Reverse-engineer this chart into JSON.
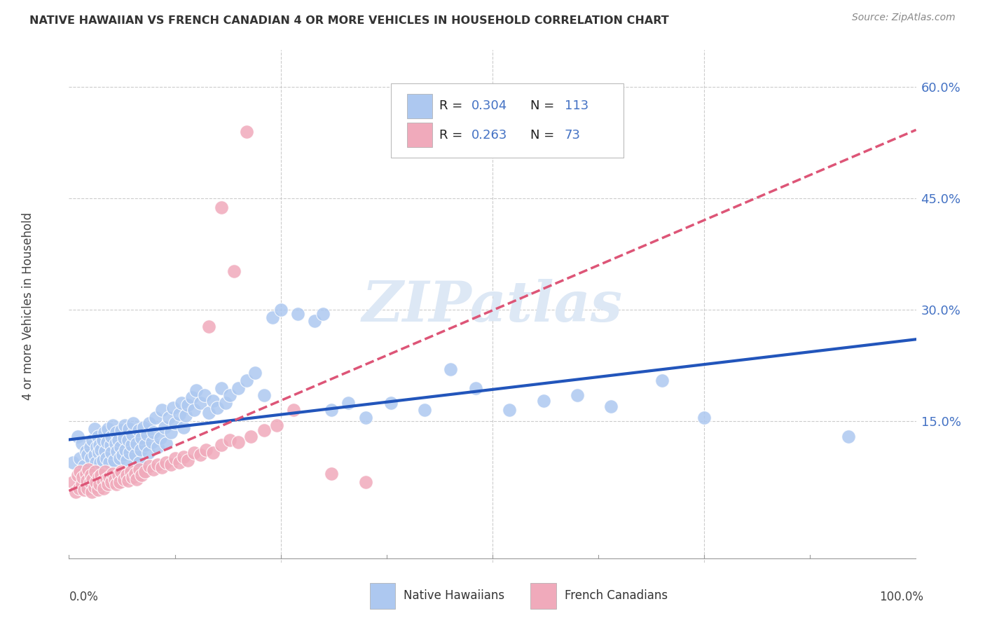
{
  "title": "NATIVE HAWAIIAN VS FRENCH CANADIAN 4 OR MORE VEHICLES IN HOUSEHOLD CORRELATION CHART",
  "source": "Source: ZipAtlas.com",
  "ylabel": "4 or more Vehicles in Household",
  "ytick_labels": [
    "15.0%",
    "30.0%",
    "45.0%",
    "60.0%"
  ],
  "ytick_values": [
    0.15,
    0.3,
    0.45,
    0.6
  ],
  "xmin": 0.0,
  "xmax": 1.0,
  "ymin": -0.04,
  "ymax": 0.65,
  "legend_R1": "0.304",
  "legend_N1": "113",
  "legend_R2": "0.263",
  "legend_N2": "73",
  "color_blue": "#adc8f0",
  "color_pink": "#f0aabb",
  "line_blue": "#2255bb",
  "line_pink": "#dd5577",
  "watermark": "ZIPatlas",
  "watermark_color": "#dde8f5",
  "blue_scatter_x": [
    0.005,
    0.01,
    0.013,
    0.015,
    0.018,
    0.02,
    0.022,
    0.023,
    0.025,
    0.026,
    0.028,
    0.03,
    0.03,
    0.032,
    0.033,
    0.034,
    0.035,
    0.036,
    0.037,
    0.038,
    0.04,
    0.04,
    0.042,
    0.043,
    0.044,
    0.045,
    0.046,
    0.048,
    0.049,
    0.05,
    0.05,
    0.052,
    0.053,
    0.055,
    0.056,
    0.057,
    0.058,
    0.06,
    0.061,
    0.062,
    0.063,
    0.065,
    0.066,
    0.067,
    0.068,
    0.07,
    0.071,
    0.072,
    0.074,
    0.075,
    0.076,
    0.078,
    0.08,
    0.082,
    0.083,
    0.085,
    0.086,
    0.088,
    0.09,
    0.092,
    0.094,
    0.095,
    0.098,
    0.1,
    0.102,
    0.105,
    0.108,
    0.11,
    0.113,
    0.115,
    0.118,
    0.12,
    0.123,
    0.125,
    0.13,
    0.133,
    0.135,
    0.138,
    0.14,
    0.145,
    0.148,
    0.15,
    0.155,
    0.16,
    0.165,
    0.17,
    0.175,
    0.18,
    0.185,
    0.19,
    0.2,
    0.21,
    0.22,
    0.23,
    0.24,
    0.25,
    0.27,
    0.29,
    0.3,
    0.31,
    0.33,
    0.35,
    0.38,
    0.42,
    0.45,
    0.48,
    0.52,
    0.56,
    0.6,
    0.64,
    0.7,
    0.75,
    0.92
  ],
  "blue_scatter_y": [
    0.095,
    0.13,
    0.1,
    0.12,
    0.09,
    0.11,
    0.105,
    0.085,
    0.115,
    0.1,
    0.125,
    0.105,
    0.14,
    0.095,
    0.115,
    0.13,
    0.108,
    0.118,
    0.095,
    0.112,
    0.125,
    0.098,
    0.135,
    0.11,
    0.1,
    0.122,
    0.14,
    0.095,
    0.118,
    0.108,
    0.13,
    0.145,
    0.098,
    0.12,
    0.135,
    0.11,
    0.125,
    0.1,
    0.115,
    0.138,
    0.105,
    0.128,
    0.145,
    0.112,
    0.098,
    0.125,
    0.14,
    0.108,
    0.118,
    0.132,
    0.148,
    0.105,
    0.12,
    0.138,
    0.095,
    0.112,
    0.128,
    0.142,
    0.118,
    0.132,
    0.108,
    0.148,
    0.122,
    0.135,
    0.155,
    0.115,
    0.128,
    0.165,
    0.142,
    0.12,
    0.155,
    0.135,
    0.168,
    0.148,
    0.16,
    0.175,
    0.142,
    0.158,
    0.172,
    0.182,
    0.165,
    0.192,
    0.175,
    0.185,
    0.162,
    0.178,
    0.168,
    0.195,
    0.175,
    0.185,
    0.195,
    0.205,
    0.215,
    0.185,
    0.29,
    0.3,
    0.295,
    0.285,
    0.295,
    0.165,
    0.175,
    0.155,
    0.175,
    0.165,
    0.22,
    0.195,
    0.165,
    0.178,
    0.185,
    0.17,
    0.205,
    0.155,
    0.13
  ],
  "pink_scatter_x": [
    0.005,
    0.008,
    0.01,
    0.012,
    0.013,
    0.015,
    0.016,
    0.018,
    0.02,
    0.021,
    0.022,
    0.023,
    0.025,
    0.026,
    0.027,
    0.028,
    0.03,
    0.031,
    0.032,
    0.034,
    0.035,
    0.036,
    0.038,
    0.04,
    0.041,
    0.043,
    0.044,
    0.046,
    0.048,
    0.05,
    0.052,
    0.054,
    0.056,
    0.058,
    0.06,
    0.062,
    0.065,
    0.068,
    0.07,
    0.073,
    0.075,
    0.078,
    0.08,
    0.083,
    0.086,
    0.09,
    0.095,
    0.1,
    0.105,
    0.11,
    0.115,
    0.12,
    0.125,
    0.13,
    0.135,
    0.14,
    0.148,
    0.155,
    0.162,
    0.17,
    0.18,
    0.19,
    0.2,
    0.215,
    0.23,
    0.245,
    0.18,
    0.195,
    0.21,
    0.165,
    0.265,
    0.31,
    0.35
  ],
  "pink_scatter_y": [
    0.068,
    0.055,
    0.078,
    0.06,
    0.082,
    0.065,
    0.075,
    0.058,
    0.08,
    0.07,
    0.06,
    0.085,
    0.068,
    0.078,
    0.055,
    0.072,
    0.062,
    0.082,
    0.068,
    0.058,
    0.075,
    0.065,
    0.078,
    0.07,
    0.06,
    0.082,
    0.072,
    0.065,
    0.075,
    0.068,
    0.08,
    0.072,
    0.065,
    0.078,
    0.068,
    0.082,
    0.072,
    0.078,
    0.07,
    0.082,
    0.075,
    0.08,
    0.072,
    0.085,
    0.078,
    0.082,
    0.09,
    0.085,
    0.092,
    0.088,
    0.095,
    0.092,
    0.1,
    0.095,
    0.102,
    0.098,
    0.108,
    0.105,
    0.112,
    0.108,
    0.118,
    0.125,
    0.122,
    0.13,
    0.138,
    0.145,
    0.438,
    0.352,
    0.54,
    0.278,
    0.165,
    0.08,
    0.068
  ]
}
